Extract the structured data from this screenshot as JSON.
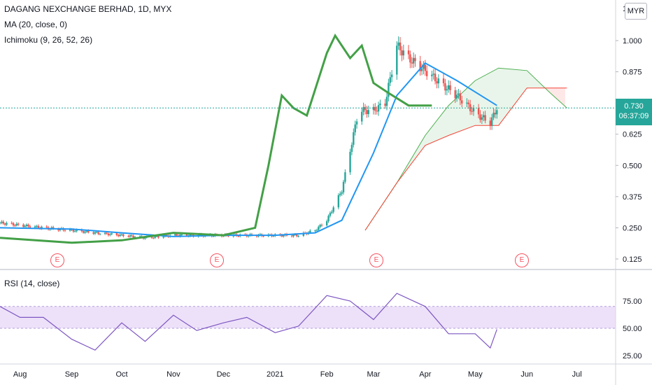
{
  "header": {
    "symbol_title": "DAGANG NEXCHANGE BERHAD, 1D, MYX",
    "ma_legend": "MA (20, close, 0)",
    "ichimoku_legend": "Ichimoku (9, 26, 52, 26)",
    "rsi_legend": "RSI (14, close)",
    "currency": "MYR"
  },
  "price_badge": {
    "price": "0.730",
    "countdown": "06:37:09"
  },
  "earnings_marker": "E",
  "colors": {
    "candle_up": "#26a69a",
    "candle_down": "#ef5350",
    "ma": "#2196f3",
    "tenkan": "#1f77b4",
    "kijun": "#b71c1c",
    "chikou": "#43a047",
    "span_a": "#4caf50",
    "span_b": "#f44336",
    "rsi": "#7e57c2",
    "rsi_band": "#e6d4f7",
    "badge": "#26a69a"
  },
  "chart_data": [
    {
      "type": "candlestick",
      "title": "DAGANG NEXCHANGE BERHAD, 1D, MYX",
      "y_ticks": [
        "0.125",
        "0.250",
        "0.375",
        "0.500",
        "0.625",
        "0.750",
        "0.875",
        "1.000"
      ],
      "ylim": [
        0.125,
        1.1
      ],
      "x_ticks": [
        "Aug",
        "Sep",
        "Oct",
        "Nov",
        "Dec",
        "2021",
        "Feb",
        "Mar",
        "Apr",
        "May",
        "Jun",
        "Jul"
      ],
      "earnings_dates": [
        "2020-08-30",
        "2020-11-25",
        "2021-02-24",
        "2021-05-27"
      ],
      "series": [
        {
          "name": "close",
          "dates": [
            "2020-07-20",
            "2020-08-01",
            "2020-08-15",
            "2020-09-01",
            "2020-09-15",
            "2020-10-01",
            "2020-10-15",
            "2020-11-01",
            "2020-11-15",
            "2020-12-01",
            "2020-12-15",
            "2021-01-01",
            "2021-01-15",
            "2021-01-25",
            "2021-02-01",
            "2021-02-10",
            "2021-02-20",
            "2021-03-01",
            "2021-03-08",
            "2021-03-15",
            "2021-03-22",
            "2021-04-01",
            "2021-04-10",
            "2021-04-20",
            "2021-05-01",
            "2021-05-10",
            "2021-05-14"
          ],
          "values": [
            0.27,
            0.26,
            0.25,
            0.24,
            0.23,
            0.22,
            0.21,
            0.22,
            0.22,
            0.22,
            0.22,
            0.22,
            0.22,
            0.24,
            0.28,
            0.4,
            0.72,
            0.72,
            0.75,
            0.98,
            0.93,
            0.88,
            0.83,
            0.78,
            0.71,
            0.67,
            0.73
          ]
        },
        {
          "name": "MA (20, close, 0)",
          "dates": [
            "2020-07-20",
            "2020-09-01",
            "2020-10-01",
            "2020-11-01",
            "2020-12-01",
            "2021-01-01",
            "2021-01-25",
            "2021-02-10",
            "2021-03-01",
            "2021-03-15",
            "2021-04-01",
            "2021-04-20",
            "2021-05-14"
          ],
          "values": [
            0.25,
            0.245,
            0.23,
            0.215,
            0.22,
            0.22,
            0.23,
            0.28,
            0.55,
            0.78,
            0.91,
            0.84,
            0.74
          ]
        },
        {
          "name": "Ichimoku Lagging Span",
          "dates": [
            "2020-07-20",
            "2020-09-01",
            "2020-10-01",
            "2020-11-01",
            "2020-12-01",
            "2020-12-20",
            "2020-12-28",
            "2021-01-05",
            "2021-01-12",
            "2021-01-20",
            "2021-02-01",
            "2021-02-06",
            "2021-02-15",
            "2021-02-22",
            "2021-03-01",
            "2021-03-10",
            "2021-03-22",
            "2021-04-05"
          ],
          "values": [
            0.21,
            0.19,
            0.2,
            0.23,
            0.22,
            0.25,
            0.5,
            0.78,
            0.73,
            0.7,
            0.95,
            1.02,
            0.93,
            0.98,
            0.83,
            0.79,
            0.74,
            0.74
          ]
        },
        {
          "name": "Ichimoku Leading Span A",
          "dates": [
            "2021-02-24",
            "2021-03-15",
            "2021-04-01",
            "2021-04-15",
            "2021-05-01",
            "2021-05-15",
            "2021-06-01",
            "2021-06-15",
            "2021-06-25"
          ],
          "values": [
            0.24,
            0.43,
            0.62,
            0.74,
            0.84,
            0.89,
            0.88,
            0.79,
            0.73
          ]
        },
        {
          "name": "Ichimoku Leading Span B",
          "dates": [
            "2021-02-24",
            "2021-03-15",
            "2021-04-01",
            "2021-04-15",
            "2021-05-01",
            "2021-05-15",
            "2021-06-01",
            "2021-06-25"
          ],
          "values": [
            0.24,
            0.43,
            0.58,
            0.62,
            0.66,
            0.66,
            0.81,
            0.81
          ]
        }
      ]
    },
    {
      "type": "line",
      "title": "RSI (14, close)",
      "y_ticks": [
        "25.00",
        "50.00",
        "75.00"
      ],
      "ylim": [
        20,
        92
      ],
      "band": [
        50,
        70
      ],
      "series": [
        {
          "name": "RSI",
          "dates": [
            "2020-07-20",
            "2020-08-01",
            "2020-08-15",
            "2020-09-01",
            "2020-09-15",
            "2020-10-01",
            "2020-10-15",
            "2020-11-01",
            "2020-11-15",
            "2020-12-01",
            "2020-12-15",
            "2021-01-01",
            "2021-01-15",
            "2021-02-01",
            "2021-02-15",
            "2021-03-01",
            "2021-03-15",
            "2021-04-01",
            "2021-04-15",
            "2021-05-01",
            "2021-05-10",
            "2021-05-14"
          ],
          "values": [
            70,
            60,
            60,
            40,
            30,
            55,
            38,
            62,
            48,
            55,
            60,
            46,
            52,
            80,
            75,
            58,
            82,
            70,
            45,
            45,
            32,
            49
          ]
        }
      ]
    }
  ]
}
